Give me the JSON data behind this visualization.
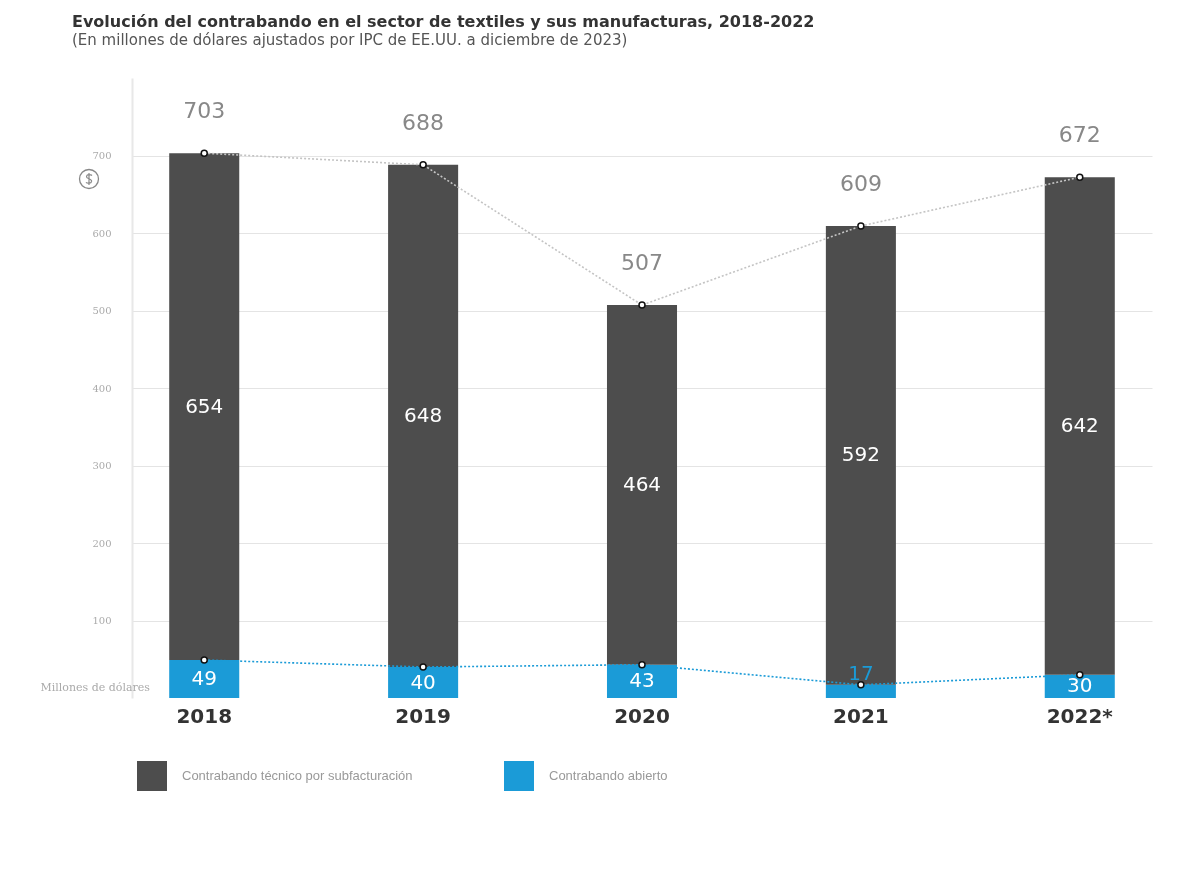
{
  "chart_data": {
    "type": "bar",
    "title": "Evolución del contrabando en el sector de textiles y sus manufacturas, 2018-2022",
    "subtitle": "(En millones de dólares ajustados por IPC de EE.UU. a diciembre de 2023)",
    "ylabel": "Millones de dólares",
    "categories": [
      "2018",
      "2019",
      "2020",
      "2021",
      "2022*"
    ],
    "stacked": true,
    "series": [
      {
        "name": "Contrabando abierto",
        "color": "#1b9bd7",
        "values": [
          49,
          40,
          43,
          17,
          30
        ],
        "value_labels": [
          "49",
          "40",
          "43",
          "17",
          "30"
        ]
      },
      {
        "name": "Contrabando técnico por subfacturación",
        "color": "#4d4d4d",
        "values": [
          654,
          648,
          464,
          592,
          642
        ],
        "value_labels": [
          "654",
          "648",
          "464",
          "592",
          "642"
        ]
      },
      {
        "type": "line",
        "color": "#c4c4c4",
        "values": [
          703,
          688,
          507,
          609,
          672
        ],
        "value_labels": [
          "703",
          "688",
          "507",
          "609",
          "672"
        ]
      },
      {
        "type": "line",
        "color": "#1b9bd7",
        "values": [
          49,
          40,
          43,
          17,
          30
        ]
      }
    ],
    "ylim": [
      0,
      800
    ],
    "yticks": [
      100,
      200,
      300,
      400,
      500,
      600,
      700
    ],
    "grid": "y",
    "legend": "bottom left",
    "marker": "circle",
    "line_style": "dotted"
  }
}
